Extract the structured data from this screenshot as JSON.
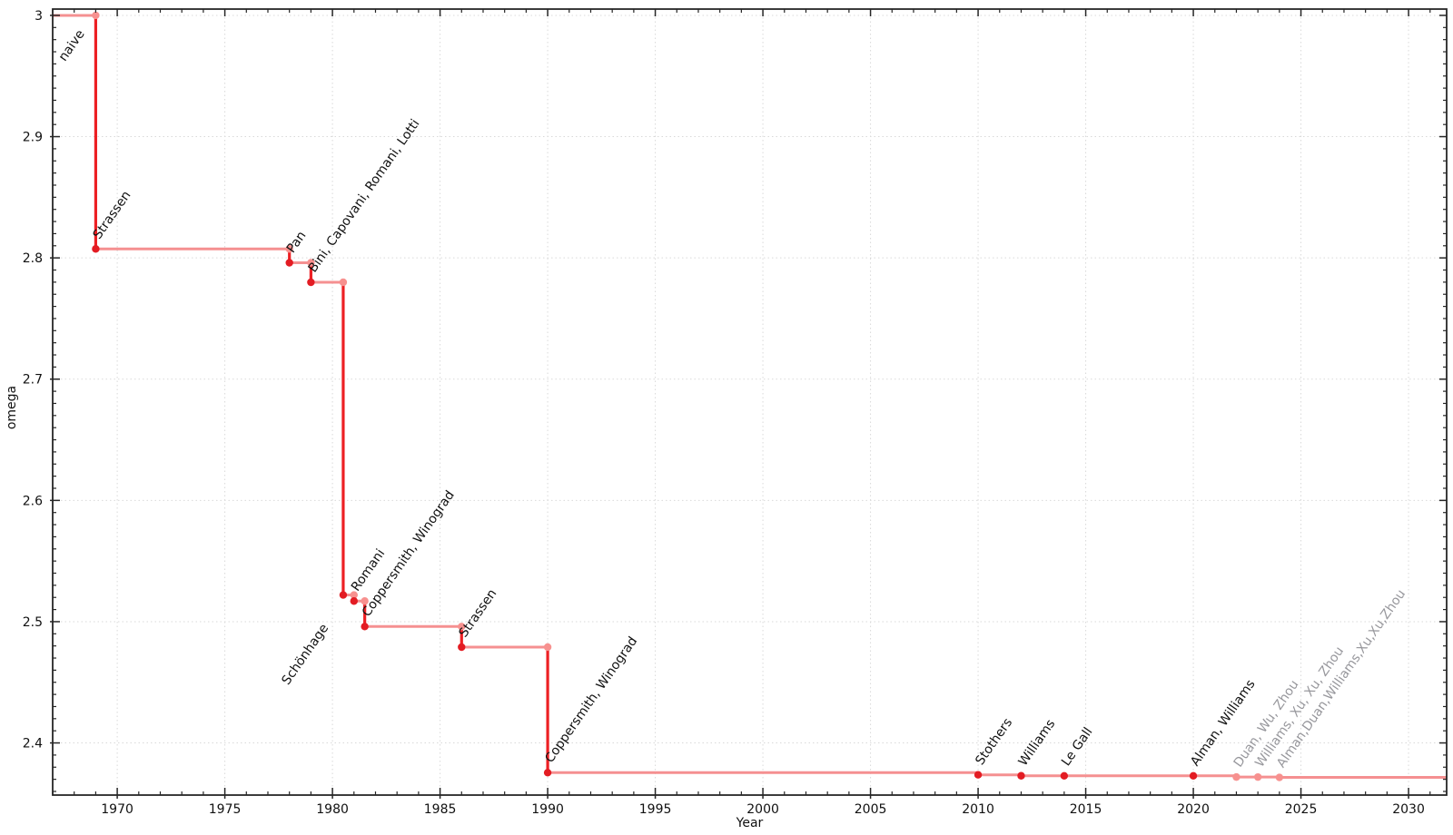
{
  "figure": {
    "background": "#ffffff",
    "xlabel": "Year",
    "ylabel": "omega"
  },
  "colors": {
    "step_horizontal": "#f59091",
    "step_drop": "#ed2024",
    "point_dark": "#e31c23",
    "point_light": "#f7918f",
    "grid": "#d9d9d9",
    "frame": "#262626",
    "tick_text": "#111111",
    "label_black": "#111111",
    "label_gray": "#97979c"
  },
  "chart_data": {
    "type": "line",
    "subtype": "step-with-points",
    "title": "",
    "xlabel": "Year",
    "ylabel": "omega",
    "x_range": [
      1967.0,
      2031.77
    ],
    "y_range": [
      2.357,
      3.0052
    ],
    "grid": "dotted-major",
    "legend": "none",
    "x_major_ticks": [
      1970,
      1975,
      1980,
      1985,
      1990,
      1995,
      2000,
      2005,
      2010,
      2015,
      2020,
      2025,
      2030
    ],
    "x_tick_labels": [
      "1970",
      "1975",
      "1980",
      "1985",
      "1990",
      "1995",
      "2000",
      "2005",
      "2010",
      "2015",
      "2020",
      "2025",
      "2030"
    ],
    "x_minor_step": 1,
    "y_major_ticks": [
      2.4,
      2.5,
      2.6,
      2.7,
      2.8,
      2.9,
      3.0
    ],
    "y_tick_labels": [
      "2.4",
      "2.5",
      "2.6",
      "2.7",
      "2.8",
      "2.9",
      "3"
    ],
    "y_minor_step": 0.01,
    "initial": {
      "omega": 3.0,
      "label": "naive",
      "label_placement": "start-left"
    },
    "events": [
      {
        "year": 1969,
        "omega": 2.8074,
        "label": "Strassen",
        "recent": false,
        "label_placement": "above"
      },
      {
        "year": 1978,
        "omega": 2.796,
        "label": "Pan",
        "recent": false,
        "label_placement": "above"
      },
      {
        "year": 1979,
        "omega": 2.7799,
        "label": "Bini, Capovani, Romani, Lotti",
        "recent": false,
        "label_placement": "above"
      },
      {
        "year": 1980.5,
        "omega": 2.522,
        "label": "Schönhage",
        "recent": false,
        "label_placement": "below"
      },
      {
        "year": 1981,
        "omega": 2.517,
        "label": "Romani",
        "recent": false,
        "label_placement": "above"
      },
      {
        "year": 1981.5,
        "omega": 2.496,
        "label": "Coppersmith, Winograd",
        "recent": false,
        "label_placement": "above"
      },
      {
        "year": 1986,
        "omega": 2.479,
        "label": "Strassen",
        "recent": false,
        "label_placement": "above"
      },
      {
        "year": 1990,
        "omega": 2.3755,
        "label": "Coppersmith, Winograd",
        "recent": false,
        "label_placement": "above"
      },
      {
        "year": 2010,
        "omega": 2.3737,
        "label": "Stothers",
        "recent": false,
        "label_placement": "above"
      },
      {
        "year": 2012,
        "omega": 2.3729,
        "label": "Williams",
        "recent": false,
        "label_placement": "above"
      },
      {
        "year": 2014,
        "omega": 2.3728639,
        "label": "Le Gall",
        "recent": false,
        "label_placement": "above"
      },
      {
        "year": 2020,
        "omega": 2.3728596,
        "label": "Alman, Williams",
        "recent": false,
        "label_placement": "above"
      },
      {
        "year": 2022,
        "omega": 2.37188,
        "label": "Duan, Wu, Zhou",
        "recent": true,
        "label_placement": "above"
      },
      {
        "year": 2023,
        "omega": 2.371866,
        "label": "Williams, Xu, Xu, Zhou",
        "recent": true,
        "label_placement": "above"
      },
      {
        "year": 2024,
        "omega": 2.371552,
        "label": "Alman,Duan,Williams,Xu,Xu,Zhou",
        "recent": true,
        "label_placement": "above"
      }
    ]
  }
}
